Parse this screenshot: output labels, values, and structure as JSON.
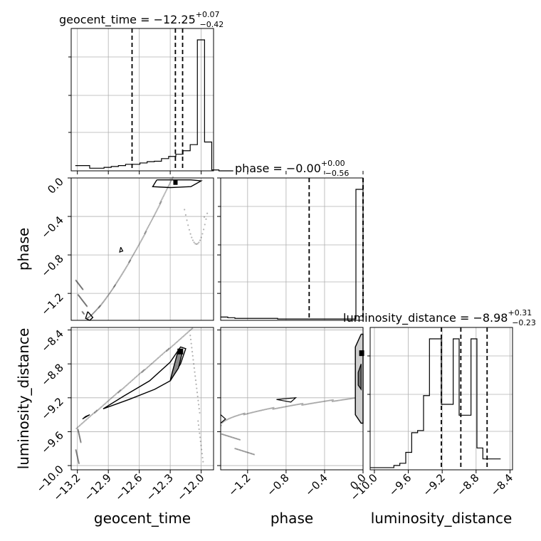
{
  "chart_data": {
    "type": "corner",
    "parameters": [
      "geocent_time",
      "phase",
      "luminosity_distance"
    ],
    "axis_labels": [
      "geocent_time",
      "phase",
      "luminosity_distance"
    ],
    "titles": [
      {
        "param": "geocent_time",
        "prefix": "geocent_time = ",
        "median": "−12.25",
        "plus": "+0.07",
        "minus": "−0.42"
      },
      {
        "param": "phase",
        "prefix": "phase = ",
        "median": "−0.00",
        "plus": "+0.00",
        "minus": "−0.56"
      },
      {
        "param": "luminosity_distance",
        "prefix": "luminosity_distance = ",
        "median": "−8.98",
        "plus": "+0.31",
        "minus": "−0.23"
      }
    ],
    "ranges": {
      "geocent_time": [
        -13.26,
        -11.88
      ],
      "phase": [
        -1.48,
        0.0
      ],
      "luminosity_distance": [
        -10.05,
        -8.37
      ]
    },
    "ticks": {
      "geocent_time": [
        -13.2,
        -12.9,
        -12.6,
        -12.3,
        -12.0
      ],
      "phase": [
        -1.2,
        -0.8,
        -0.4,
        0.0
      ],
      "luminosity_distance": [
        -10.0,
        -9.6,
        -9.2,
        -8.8,
        -8.4
      ]
    },
    "tick_labels": {
      "geocent_time": [
        "−13.2",
        "−12.9",
        "−12.6",
        "−12.3",
        "−12.0"
      ],
      "phase_x": [
        "−1.2",
        "−0.8",
        "−0.4",
        "0.0"
      ],
      "phase_y": [
        "0.0",
        "−0.4",
        "−0.8",
        "−1.2"
      ],
      "luminosity_distance_x": [
        "−10.0",
        "−9.6",
        "−9.2",
        "−8.8",
        "−8.4"
      ],
      "luminosity_distance_y": [
        "−8.4",
        "−8.8",
        "−9.2",
        "−9.6",
        "−10.0"
      ]
    },
    "quantiles": {
      "geocent_time": [
        -12.67,
        -12.25,
        -12.18
      ],
      "phase": [
        -0.56,
        0.0,
        0.0
      ],
      "luminosity_distance": [
        -9.21,
        -8.98,
        -8.67
      ]
    },
    "hist": {
      "geocent_time": {
        "edges_start": -13.22,
        "bin_width": 0.0696,
        "counts": [
          12,
          12,
          6,
          6,
          8,
          10,
          12,
          15,
          15,
          18,
          21,
          22,
          28,
          33,
          38,
          46,
          60,
          300,
          66,
          2,
          0,
          0
        ]
      },
      "phase": {
        "edges_start": -1.48,
        "bin_width": 0.074,
        "counts": [
          5,
          4,
          3,
          3,
          3,
          3,
          3,
          3,
          2,
          2,
          2,
          2,
          2,
          2,
          2,
          2,
          2,
          2,
          2,
          200
        ]
      },
      "luminosity_distance": {
        "edges_start": -10.05,
        "bin_width": 0.07,
        "counts": [
          1,
          1,
          1,
          1,
          2,
          3,
          8,
          17,
          18,
          34,
          60,
          60,
          30,
          30,
          60,
          25,
          25,
          60,
          10,
          5,
          5,
          5
        ]
      }
    },
    "grid": true
  }
}
